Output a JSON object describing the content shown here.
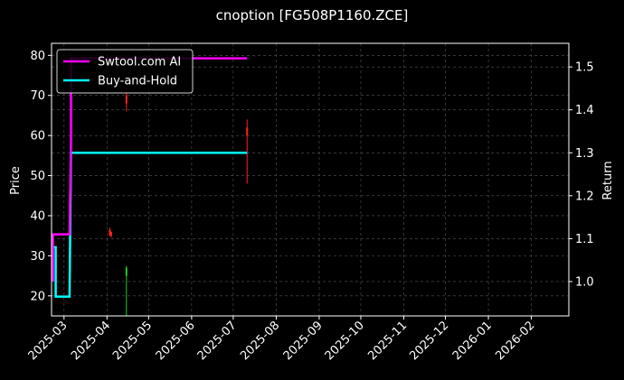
{
  "chart_data": {
    "type": "line",
    "title": "cnoption [FG508P1160.ZCE]",
    "ylabel": "Price",
    "y2label": "Return",
    "ylim": [
      15,
      83
    ],
    "y2lim": [
      0.92,
      1.555
    ],
    "yticks": [
      20,
      30,
      40,
      50,
      60,
      70,
      80
    ],
    "y2ticks": [
      1.0,
      1.1,
      1.2,
      1.3,
      1.4,
      1.5
    ],
    "y2tick_labels": [
      "1.0",
      "1.1",
      "1.2",
      "1.3",
      "1.4",
      "1.5"
    ],
    "xlim": [
      "2025-02-20",
      "2026-02-28"
    ],
    "xticks": [
      "2025-03-01",
      "2025-04-01",
      "2025-05-01",
      "2025-06-01",
      "2025-07-01",
      "2025-08-01",
      "2025-09-01",
      "2025-10-01",
      "2025-11-01",
      "2025-12-01",
      "2026-01-01",
      "2026-02-01"
    ],
    "xtick_labels": [
      "2025-03",
      "2025-04",
      "2025-05",
      "2025-06",
      "2025-07",
      "2025-08",
      "2025-09",
      "2025-10",
      "2025-11",
      "2025-12",
      "2026-01",
      "2026-02"
    ],
    "grid": true,
    "legend": {
      "position": "upper-left"
    },
    "series": [
      {
        "name": "Swtool.com AI",
        "color": "#ff00ff",
        "axis": "right",
        "x": [
          "2025-02-21",
          "2025-02-21",
          "2025-02-22",
          "2025-02-22",
          "2025-03-05",
          "2025-03-05",
          "2025-03-06",
          "2025-03-06",
          "2025-07-11"
        ],
        "y": [
          1.0,
          1.11,
          1.11,
          1.11,
          1.11,
          1.11,
          1.33,
          1.52,
          1.52
        ]
      },
      {
        "name": "Buy-and-Hold",
        "color": "#00ffff",
        "axis": "right",
        "x": [
          "2025-02-21",
          "2025-02-21",
          "2025-02-23",
          "2025-02-23",
          "2025-03-05",
          "2025-03-05",
          "2025-03-06",
          "2025-07-11"
        ],
        "y": [
          1.0,
          1.08,
          1.08,
          0.965,
          0.965,
          0.965,
          1.3,
          1.3
        ]
      }
    ],
    "candles": [
      {
        "date": "2025-02-21",
        "open": 32,
        "close": 30,
        "high": 34,
        "low": 30,
        "color": "#ff2020"
      },
      {
        "date": "2025-03-06",
        "open": 62,
        "close": 60,
        "high": 80,
        "low": 55,
        "color": "#ff2020"
      },
      {
        "date": "2025-04-03",
        "open": 36.5,
        "close": 35,
        "high": 37,
        "low": 35,
        "color": "#ff2020"
      },
      {
        "date": "2025-04-04",
        "open": 36,
        "close": 35,
        "high": 36,
        "low": 34.5,
        "color": "#ff2020"
      },
      {
        "date": "2025-04-15",
        "open": 25,
        "close": 27,
        "high": 27.5,
        "low": 15,
        "color": "#22cc22"
      },
      {
        "date": "2025-04-15",
        "open": 70,
        "close": 68,
        "high": 72,
        "low": 66,
        "color": "#ff2020"
      },
      {
        "date": "2025-07-11",
        "open": 62,
        "close": 60,
        "high": 64,
        "low": 48,
        "color": "#ff2020"
      }
    ]
  }
}
